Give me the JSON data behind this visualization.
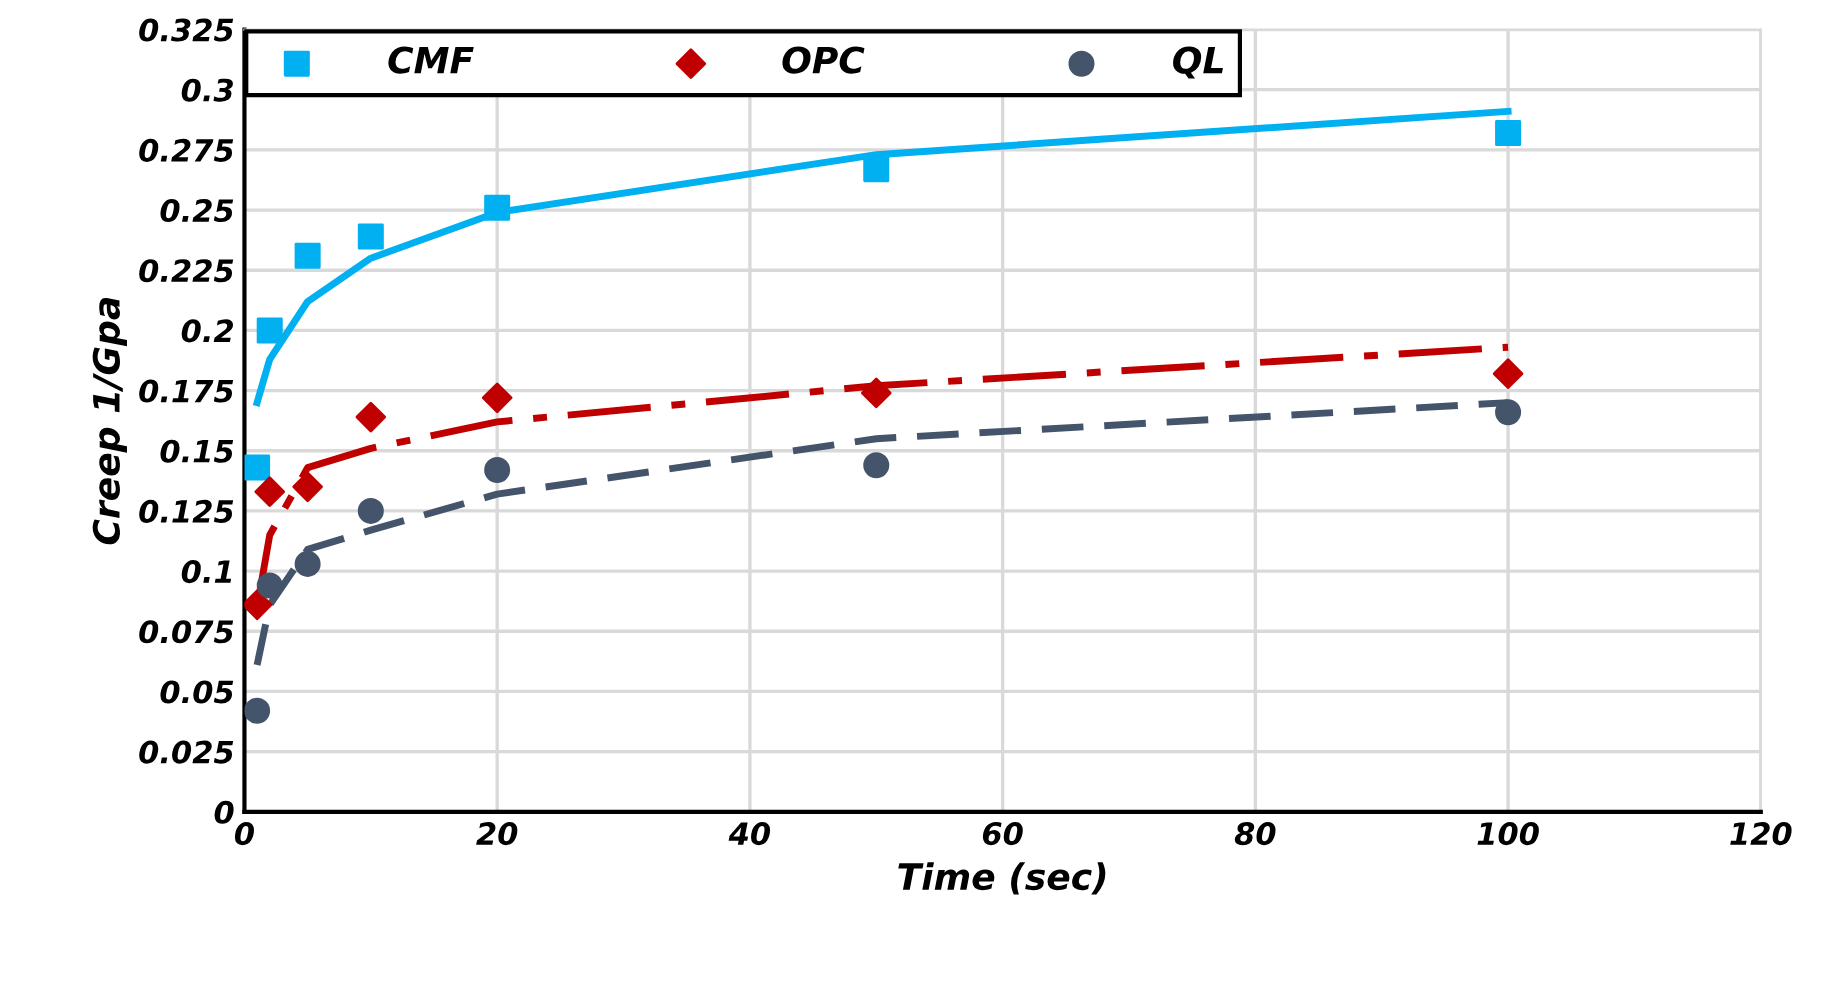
{
  "chart_data": {
    "type": "scatter",
    "xlabel": "Time (sec)",
    "ylabel": "Creep 1/Gpa",
    "xlim": [
      0,
      120
    ],
    "xticks": [
      0,
      20,
      40,
      60,
      80,
      100,
      120
    ],
    "ylim": [
      0,
      0.325
    ],
    "yticks": [
      0,
      0.025,
      0.05,
      0.075,
      0.1,
      0.125,
      0.15,
      0.175,
      0.2,
      0.225,
      0.25,
      0.275,
      0.3,
      0.325
    ],
    "grid": true,
    "legend": "top",
    "series": [
      {
        "name": "CMF",
        "marker": "square",
        "color": "#00b0f0",
        "x": [
          1,
          2,
          5,
          10,
          20,
          50,
          100
        ],
        "values": [
          0.143,
          0.2,
          0.231,
          0.239,
          0.251,
          0.267,
          0.282
        ]
      },
      {
        "name": "OPC",
        "marker": "diamond",
        "color": "#c00000",
        "x": [
          1,
          2,
          5,
          10,
          20,
          50,
          100
        ],
        "values": [
          0.086,
          0.133,
          0.135,
          0.164,
          0.172,
          0.174,
          0.182
        ]
      },
      {
        "name": "QL",
        "marker": "circle",
        "color": "#44546a",
        "x": [
          1,
          2,
          5,
          10,
          20,
          50,
          100
        ],
        "values": [
          0.042,
          0.094,
          0.103,
          0.125,
          0.142,
          0.144,
          0.166
        ]
      },
      {
        "type": "line",
        "line_style": "solid",
        "color": "#00b0f0",
        "x": [
          1,
          2,
          5,
          10,
          20,
          50,
          100
        ],
        "values": [
          0.17,
          0.188,
          0.212,
          0.23,
          0.249,
          0.273,
          0.291
        ]
      },
      {
        "type": "line",
        "line_style": "dashdot",
        "color": "#c00000",
        "x": [
          1,
          2,
          5,
          10,
          20,
          50,
          100
        ],
        "values": [
          0.085,
          0.115,
          0.143,
          0.151,
          0.162,
          0.177,
          0.193
        ]
      },
      {
        "type": "line",
        "line_style": "dashed",
        "color": "#44546a",
        "x": [
          1,
          2,
          5,
          10,
          20,
          50,
          100
        ],
        "values": [
          0.061,
          0.086,
          0.109,
          0.117,
          0.132,
          0.155,
          0.17
        ]
      }
    ]
  }
}
